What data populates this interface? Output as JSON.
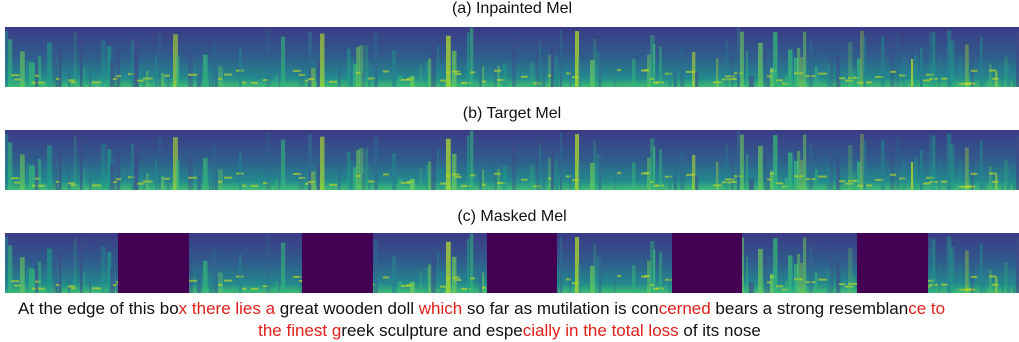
{
  "panels": [
    {
      "title": "(a) Inpainted Mel",
      "masked": false
    },
    {
      "title": "(b) Target Mel",
      "masked": false
    },
    {
      "title": "(c) Masked Mel",
      "masked": true
    }
  ],
  "caption": {
    "lines": [
      [
        {
          "text": "At the edge of this bo",
          "highlighted": false
        },
        {
          "text": "x there lies a",
          "highlighted": true
        },
        {
          "text": " great wooden doll ",
          "highlighted": false
        },
        {
          "text": "which",
          "highlighted": true
        },
        {
          "text": " so far as mutilation is con",
          "highlighted": false
        },
        {
          "text": "cerned",
          "highlighted": true
        },
        {
          "text": " bears a strong resemblan",
          "highlighted": false
        },
        {
          "text": "ce to",
          "highlighted": true
        }
      ],
      [
        {
          "text": "the finest g",
          "highlighted": true
        },
        {
          "text": "reek sculpture and espe",
          "highlighted": false
        },
        {
          "text": "cially in the total loss",
          "highlighted": true
        },
        {
          "text": " of its nose",
          "highlighted": false
        }
      ]
    ]
  }
}
